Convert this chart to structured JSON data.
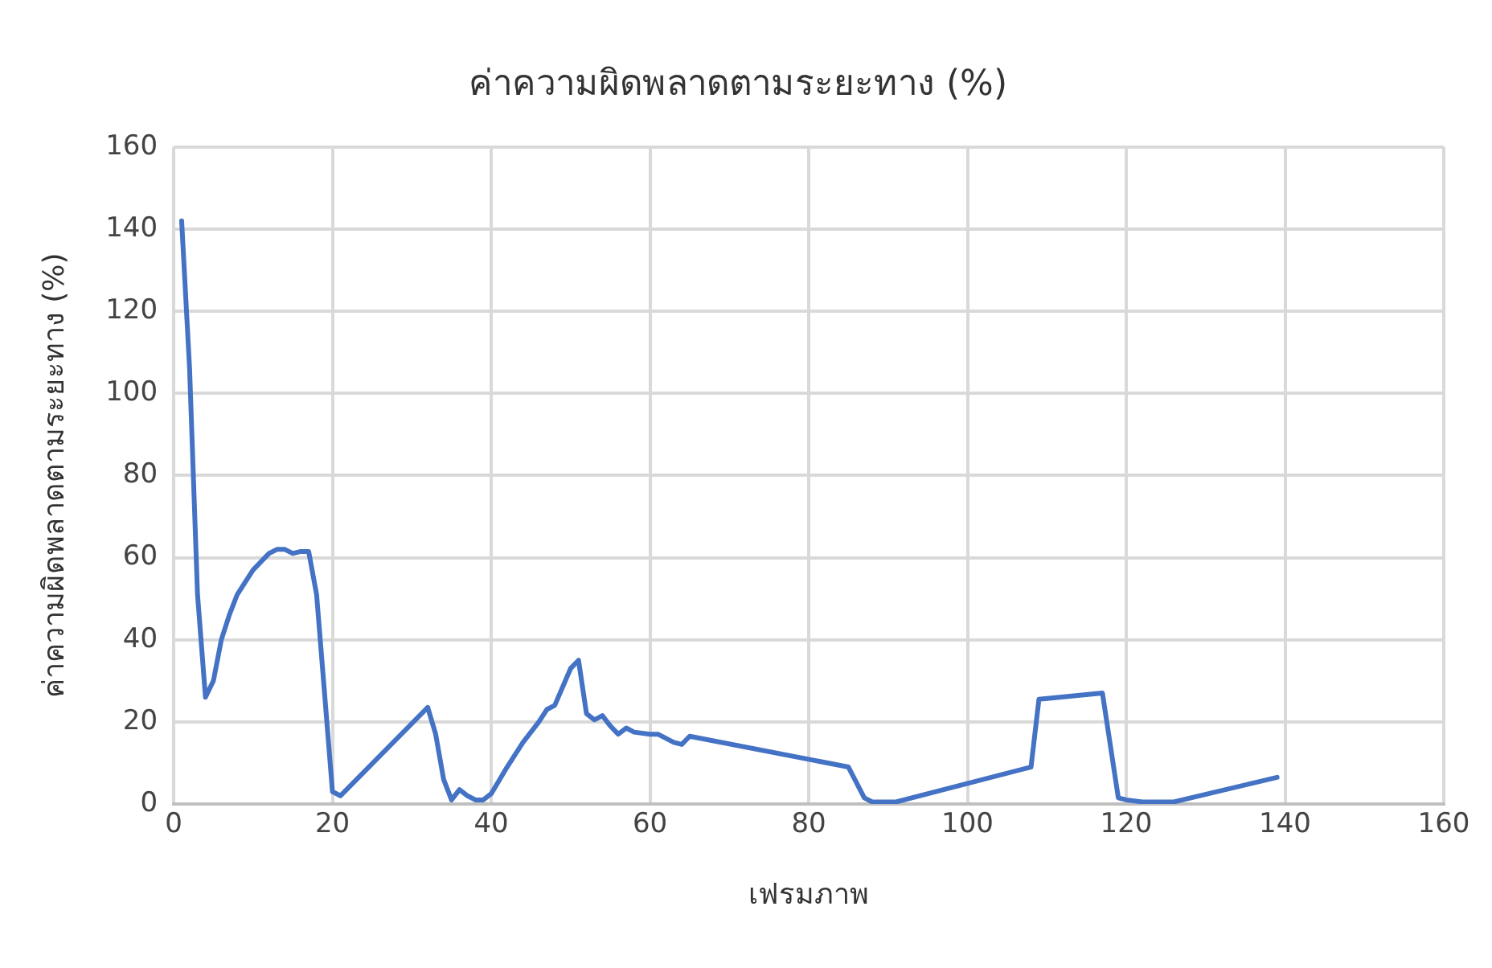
{
  "chart_data": {
    "type": "line",
    "title": "ค่าความผิดพลาดตามระยะทาง (%)",
    "xlabel": "เฟรมภาพ",
    "ylabel": "ค่าความผิดพลาดตามระยะทาง (%)",
    "x": [
      1,
      2,
      3,
      4,
      5,
      6,
      7,
      8,
      9,
      10,
      11,
      12,
      13,
      14,
      15,
      16,
      17,
      18,
      19,
      20,
      21,
      32,
      33,
      34,
      35,
      36,
      37,
      38,
      39,
      40,
      42,
      44,
      46,
      47,
      48,
      50,
      51,
      52,
      53,
      54,
      55,
      56,
      57,
      58,
      60,
      61,
      63,
      64,
      65,
      85,
      87,
      88,
      91,
      108,
      109,
      117,
      119,
      120,
      122,
      126,
      139
    ],
    "series": [
      {
        "color": "#4472c4",
        "values": [
          142,
          106,
          51,
          26,
          30,
          40,
          46,
          51,
          54,
          57,
          59,
          61,
          62,
          62,
          61,
          61.5,
          61.5,
          51,
          27,
          3,
          2,
          23.5,
          17,
          6,
          1,
          3.5,
          2,
          1,
          1,
          2.5,
          9,
          15,
          20,
          23,
          24,
          33,
          35,
          22,
          20.5,
          21.5,
          19,
          17,
          18.5,
          17.5,
          17,
          17,
          15,
          14.5,
          16.5,
          9,
          1.5,
          0.5,
          0.5,
          9,
          25.5,
          27,
          1.5,
          1,
          0.5,
          0.5,
          6.5
        ]
      }
    ],
    "xlim": [
      0,
      160
    ],
    "xticks": [
      0,
      20,
      40,
      60,
      80,
      100,
      120,
      140,
      160
    ],
    "ylim": [
      0,
      160
    ],
    "yticks": [
      0,
      20,
      40,
      60,
      80,
      100,
      120,
      140,
      160
    ],
    "grid": true,
    "legend": false,
    "marker": "none",
    "line_style": "solid"
  }
}
